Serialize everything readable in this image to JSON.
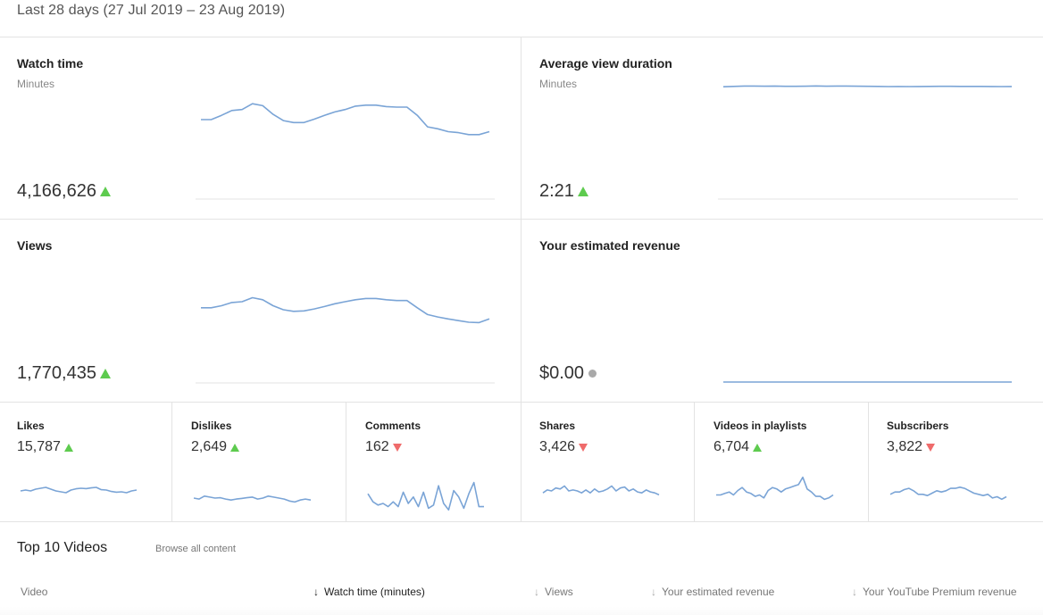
{
  "header": {
    "date_range": "Last 28 days (27 Jul 2019 – 23 Aug 2019)"
  },
  "colors": {
    "line": "#7aa4d6",
    "baseline": "#e3e3e3",
    "up": "#5ecb4f",
    "down": "#ef6b6b",
    "neutral": "#a9a9a9"
  },
  "big_cards": {
    "watch_time": {
      "title": "Watch time",
      "subtitle": "Minutes",
      "value": "4,166,626",
      "trend": "up",
      "spark": [
        0.63,
        0.63,
        0.54,
        0.44,
        0.42,
        0.3,
        0.34,
        0.52,
        0.65,
        0.69,
        0.69,
        0.62,
        0.54,
        0.47,
        0.42,
        0.35,
        0.33,
        0.33,
        0.36,
        0.37,
        0.37,
        0.54,
        0.78,
        0.82,
        0.88,
        0.9,
        0.94,
        0.94,
        0.88
      ]
    },
    "avg_view_duration": {
      "title": "Average view duration",
      "subtitle": "Minutes",
      "value": "2:21",
      "trend": "up",
      "spark": [
        0.43,
        0.4,
        0.37,
        0.37,
        0.38,
        0.37,
        0.39,
        0.39,
        0.38,
        0.36,
        0.38,
        0.37,
        0.37,
        0.38,
        0.39,
        0.4,
        0.42,
        0.41,
        0.42,
        0.41,
        0.4,
        0.39,
        0.39,
        0.4,
        0.4,
        0.4,
        0.41,
        0.42,
        0.41
      ]
    },
    "views": {
      "title": "Views",
      "value": "1,770,435",
      "trend": "up",
      "spark": [
        0.55,
        0.55,
        0.5,
        0.42,
        0.4,
        0.3,
        0.35,
        0.5,
        0.6,
        0.64,
        0.63,
        0.58,
        0.52,
        0.45,
        0.4,
        0.35,
        0.32,
        0.32,
        0.35,
        0.37,
        0.37,
        0.55,
        0.72,
        0.78,
        0.83,
        0.87,
        0.91,
        0.92,
        0.83
      ]
    },
    "revenue": {
      "title": "Your estimated revenue",
      "value": "$0.00",
      "trend": "neutral",
      "spark": [
        0,
        0,
        0,
        0,
        0,
        0,
        0,
        0,
        0,
        0,
        0,
        0,
        0,
        0,
        0,
        0,
        0,
        0,
        0,
        0,
        0,
        0,
        0,
        0,
        0,
        0,
        0,
        0,
        0
      ]
    }
  },
  "small_cards": {
    "likes": {
      "title": "Likes",
      "value": "15,787",
      "trend": "up",
      "spark": [
        0.45,
        0.4,
        0.45,
        0.35,
        0.3,
        0.25,
        0.35,
        0.45,
        0.5,
        0.55,
        0.4,
        0.33,
        0.3,
        0.32,
        0.28,
        0.25,
        0.38,
        0.4,
        0.48,
        0.52,
        0.5,
        0.55,
        0.45,
        0.4
      ]
    },
    "dislikes": {
      "title": "Dislikes",
      "value": "2,649",
      "trend": "up",
      "spark": [
        0.5,
        0.55,
        0.4,
        0.45,
        0.5,
        0.48,
        0.55,
        0.6,
        0.55,
        0.52,
        0.48,
        0.45,
        0.55,
        0.5,
        0.4,
        0.45,
        0.5,
        0.55,
        0.65,
        0.7,
        0.6,
        0.55,
        0.6
      ]
    },
    "comments": {
      "title": "Comments",
      "value": "162",
      "trend": "down",
      "spark": [
        0.45,
        0.7,
        0.8,
        0.75,
        0.85,
        0.7,
        0.85,
        0.4,
        0.75,
        0.55,
        0.85,
        0.4,
        0.9,
        0.8,
        0.2,
        0.75,
        0.95,
        0.35,
        0.55,
        0.9,
        0.45,
        0.1,
        0.85,
        0.85
      ]
    },
    "shares": {
      "title": "Shares",
      "value": "3,426",
      "trend": "down",
      "spark": [
        0.6,
        0.45,
        0.5,
        0.35,
        0.4,
        0.25,
        0.5,
        0.45,
        0.5,
        0.6,
        0.45,
        0.6,
        0.4,
        0.55,
        0.5,
        0.4,
        0.25,
        0.5,
        0.35,
        0.3,
        0.5,
        0.4,
        0.55,
        0.6,
        0.45,
        0.55,
        0.6,
        0.7
      ]
    },
    "videos_in_playlists": {
      "title": "Videos in playlists",
      "value": "6,704",
      "trend": "up",
      "spark": [
        0.65,
        0.65,
        0.6,
        0.55,
        0.65,
        0.5,
        0.4,
        0.55,
        0.6,
        0.7,
        0.65,
        0.75,
        0.5,
        0.4,
        0.45,
        0.55,
        0.45,
        0.4,
        0.35,
        0.3,
        0.05,
        0.45,
        0.55,
        0.7,
        0.7,
        0.8,
        0.75,
        0.65
      ]
    },
    "subscribers": {
      "title": "Subscribers",
      "value": "3,822",
      "trend": "down",
      "spark": [
        0.55,
        0.45,
        0.45,
        0.35,
        0.3,
        0.4,
        0.55,
        0.55,
        0.6,
        0.5,
        0.4,
        0.45,
        0.4,
        0.3,
        0.3,
        0.25,
        0.3,
        0.4,
        0.5,
        0.55,
        0.6,
        0.55,
        0.7,
        0.65,
        0.75,
        0.65
      ]
    }
  },
  "top_videos": {
    "title": "Top 10 Videos",
    "browse_link": "Browse all content",
    "columns": [
      "Video",
      "Watch time (minutes)",
      "Views",
      "Your estimated revenue",
      "Your YouTube Premium revenue"
    ]
  }
}
